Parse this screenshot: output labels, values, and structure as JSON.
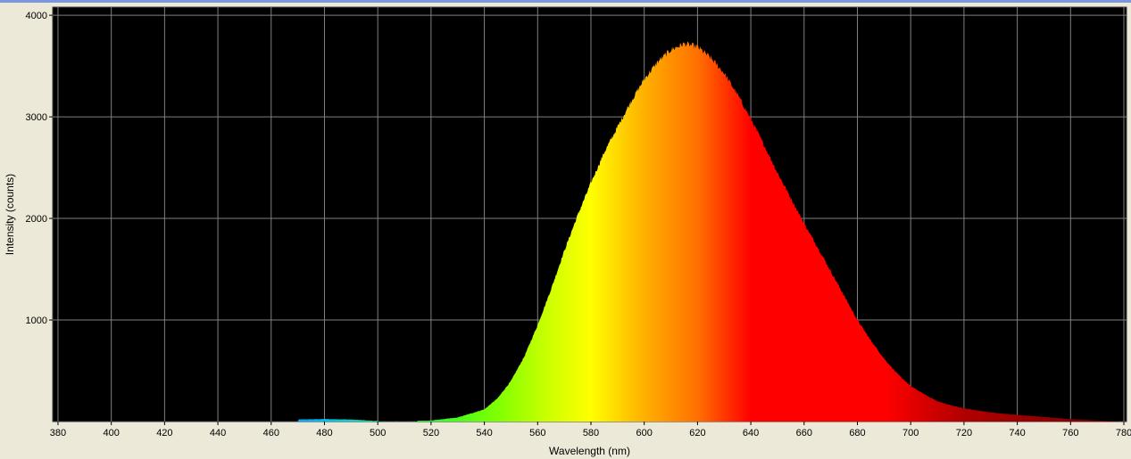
{
  "chart_data": {
    "type": "area",
    "xlabel": "Wavelength (nm)",
    "ylabel": "Intensity (counts)",
    "xlim": [
      378,
      781
    ],
    "ylim": [
      0,
      4080
    ],
    "x_ticks": [
      380,
      400,
      420,
      440,
      460,
      480,
      500,
      520,
      540,
      560,
      580,
      600,
      620,
      640,
      660,
      680,
      700,
      720,
      740,
      760,
      780
    ],
    "y_ticks": [
      1000,
      2000,
      3000,
      4000
    ],
    "grid": true,
    "background_color": "#000000",
    "grid_color": "#808080",
    "fill": "wavelength-colored spectrum",
    "series": [
      {
        "x": [
          470,
          480,
          490,
          500,
          520,
          530,
          540,
          545,
          550,
          555,
          560,
          565,
          570,
          575,
          580,
          585,
          590,
          595,
          600,
          605,
          610,
          615,
          620,
          625,
          630,
          635,
          640,
          645,
          650,
          655,
          660,
          665,
          670,
          675,
          680,
          685,
          690,
          695,
          700,
          705,
          710,
          715,
          720,
          730,
          740,
          750,
          760,
          770,
          780
        ],
        "values": [
          20,
          25,
          20,
          5,
          10,
          40,
          120,
          230,
          400,
          640,
          950,
          1300,
          1680,
          2030,
          2350,
          2650,
          2900,
          3150,
          3370,
          3540,
          3660,
          3720,
          3690,
          3580,
          3430,
          3220,
          2980,
          2720,
          2450,
          2200,
          1950,
          1720,
          1480,
          1240,
          1000,
          800,
          620,
          470,
          350,
          270,
          200,
          160,
          130,
          90,
          65,
          45,
          25,
          10,
          0
        ]
      }
    ]
  }
}
